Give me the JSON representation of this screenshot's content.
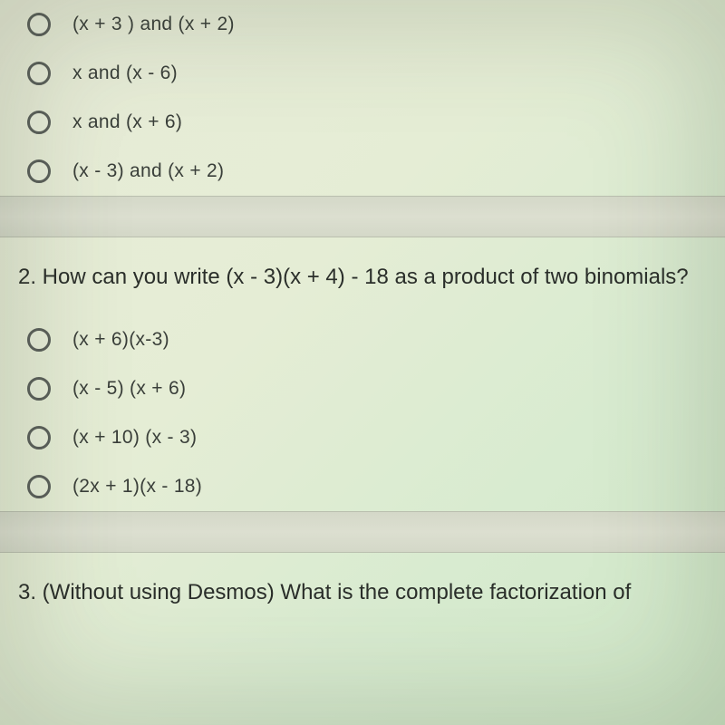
{
  "q1": {
    "options": [
      "(x + 3 ) and (x + 2)",
      "x and (x - 6)",
      "x and (x + 6)",
      "(x - 3) and (x + 2)"
    ]
  },
  "q2": {
    "prompt": "2. How can you write (x - 3)(x + 4) - 18 as a product of two binomials?",
    "options": [
      "(x + 6)(x-3)",
      "(x - 5) (x + 6)",
      "(x + 10) (x - 3)",
      "(2x + 1)(x - 18)"
    ]
  },
  "q3": {
    "prompt": "3. (Without using Desmos) What is the complete factorization of"
  },
  "colors": {
    "radio_border": "#5a5f5a",
    "text": "#3a3f3a",
    "question_text": "#2a2e2a",
    "divider_bg": "#d8dccd"
  }
}
